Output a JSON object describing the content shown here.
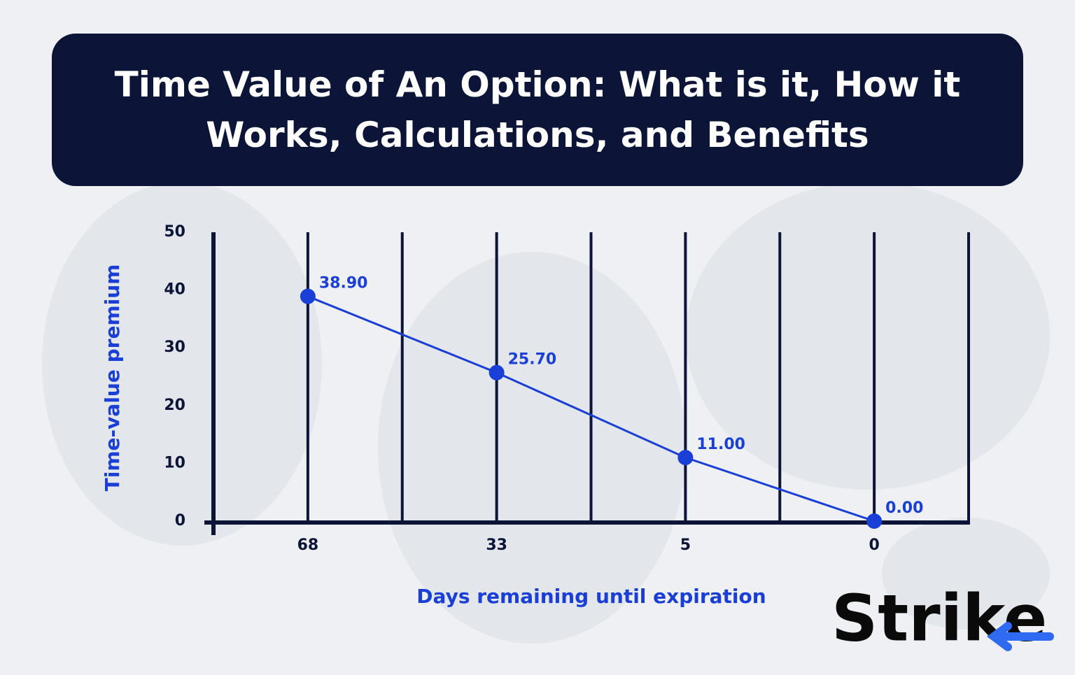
{
  "chart_data": {
    "type": "line",
    "title": "Time Value of An Option: What is it, How it Works, Calculations, and Benefits",
    "y_label": "Time-value premium",
    "x_label": "Days remaining until expiration",
    "categories": [
      "68",
      "33",
      "5",
      "0"
    ],
    "values": [
      38.9,
      25.7,
      11,
      0
    ],
    "value_labels": [
      "38.90",
      "25.70",
      "11.00",
      "0.00"
    ],
    "color": "#1a3fd6",
    "ylim": [
      0,
      50
    ],
    "yticks": [
      0,
      10,
      20,
      30,
      40,
      50
    ]
  },
  "logo": "Strike"
}
